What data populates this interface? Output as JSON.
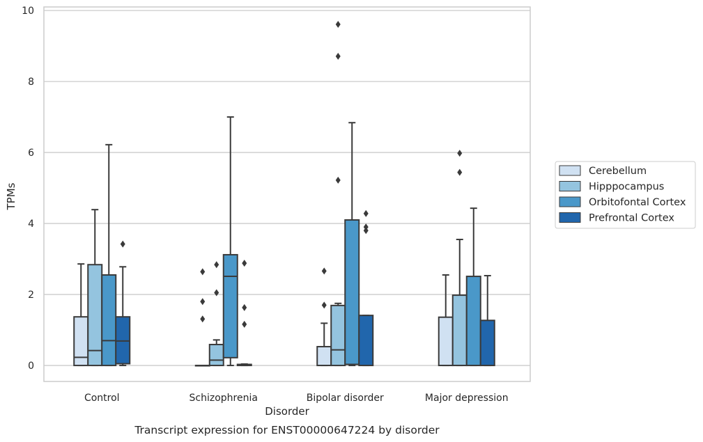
{
  "chart_data": {
    "type": "box",
    "xlabel": "Disorder",
    "ylabel": "TPMs",
    "caption": "Transcript expression for ENST00000647224 by disorder",
    "ylim": [
      -0.45,
      10.1
    ],
    "yticks": [
      0,
      2,
      4,
      6,
      8,
      10
    ],
    "grid": true,
    "legend_position": "right",
    "categories": [
      "Control",
      "Schizophrenia",
      "Bipolar disorder",
      "Major depression"
    ],
    "series": [
      {
        "name": "Cerebellum",
        "color": "#d0e1f2",
        "boxes": [
          {
            "whislo": 0.0,
            "q1": 0.0,
            "med": 0.23,
            "q3": 1.37,
            "whishi": 2.86,
            "fliers": []
          },
          {
            "whislo": 0.0,
            "q1": 0.0,
            "med": 0.0,
            "q3": 0.0,
            "whishi": 0.0,
            "fliers": [
              1.31,
              1.8,
              2.64
            ]
          },
          {
            "whislo": 0.0,
            "q1": 0.0,
            "med": 0.0,
            "q3": 0.53,
            "whishi": 1.19,
            "fliers": [
              1.7,
              2.66
            ]
          },
          {
            "whislo": 0.0,
            "q1": 0.0,
            "med": 0.0,
            "q3": 1.36,
            "whishi": 2.55,
            "fliers": []
          }
        ]
      },
      {
        "name": "Hipppocampus",
        "color": "#94c4df",
        "boxes": [
          {
            "whislo": 0.0,
            "q1": 0.0,
            "med": 0.42,
            "q3": 2.84,
            "whishi": 4.39,
            "fliers": []
          },
          {
            "whislo": 0.0,
            "q1": 0.0,
            "med": 0.15,
            "q3": 0.59,
            "whishi": 0.72,
            "fliers": [
              2.05,
              2.84
            ]
          },
          {
            "whislo": 0.0,
            "q1": 0.0,
            "med": 0.44,
            "q3": 1.69,
            "whishi": 1.75,
            "fliers": [
              5.22,
              8.71,
              9.61
            ]
          },
          {
            "whislo": 0.0,
            "q1": 0.0,
            "med": 0.0,
            "q3": 1.98,
            "whishi": 3.55,
            "fliers": [
              5.44,
              5.98
            ]
          }
        ]
      },
      {
        "name": "Orbitofontal Cortex",
        "color": "#4a98c9",
        "boxes": [
          {
            "whislo": 0.0,
            "q1": 0.0,
            "med": 0.7,
            "q3": 2.55,
            "whishi": 6.22,
            "fliers": []
          },
          {
            "whislo": 0.0,
            "q1": 0.22,
            "med": 2.51,
            "q3": 3.12,
            "whishi": 7.0,
            "fliers": []
          },
          {
            "whislo": 0.0,
            "q1": 0.03,
            "med": 0.03,
            "q3": 4.1,
            "whishi": 6.84,
            "fliers": []
          },
          {
            "whislo": 0.0,
            "q1": 0.0,
            "med": 0.0,
            "q3": 2.51,
            "whishi": 4.43,
            "fliers": []
          }
        ]
      },
      {
        "name": "Prefrontal Cortex",
        "color": "#2166ac",
        "boxes": [
          {
            "whislo": 0.0,
            "q1": 0.05,
            "med": 0.69,
            "q3": 1.37,
            "whishi": 2.78,
            "fliers": [
              3.42
            ]
          },
          {
            "whislo": 0.0,
            "q1": 0.0,
            "med": 0.02,
            "q3": 0.03,
            "whishi": 0.04,
            "fliers": [
              1.16,
              1.63,
              2.88
            ]
          },
          {
            "whislo": 0.0,
            "q1": 0.0,
            "med": 0.0,
            "q3": 1.41,
            "whishi": 1.41,
            "fliers": [
              3.8,
              3.9,
              4.28
            ]
          },
          {
            "whislo": 0.0,
            "q1": 0.0,
            "med": 0.0,
            "q3": 1.27,
            "whishi": 2.53,
            "fliers": []
          }
        ]
      }
    ]
  }
}
